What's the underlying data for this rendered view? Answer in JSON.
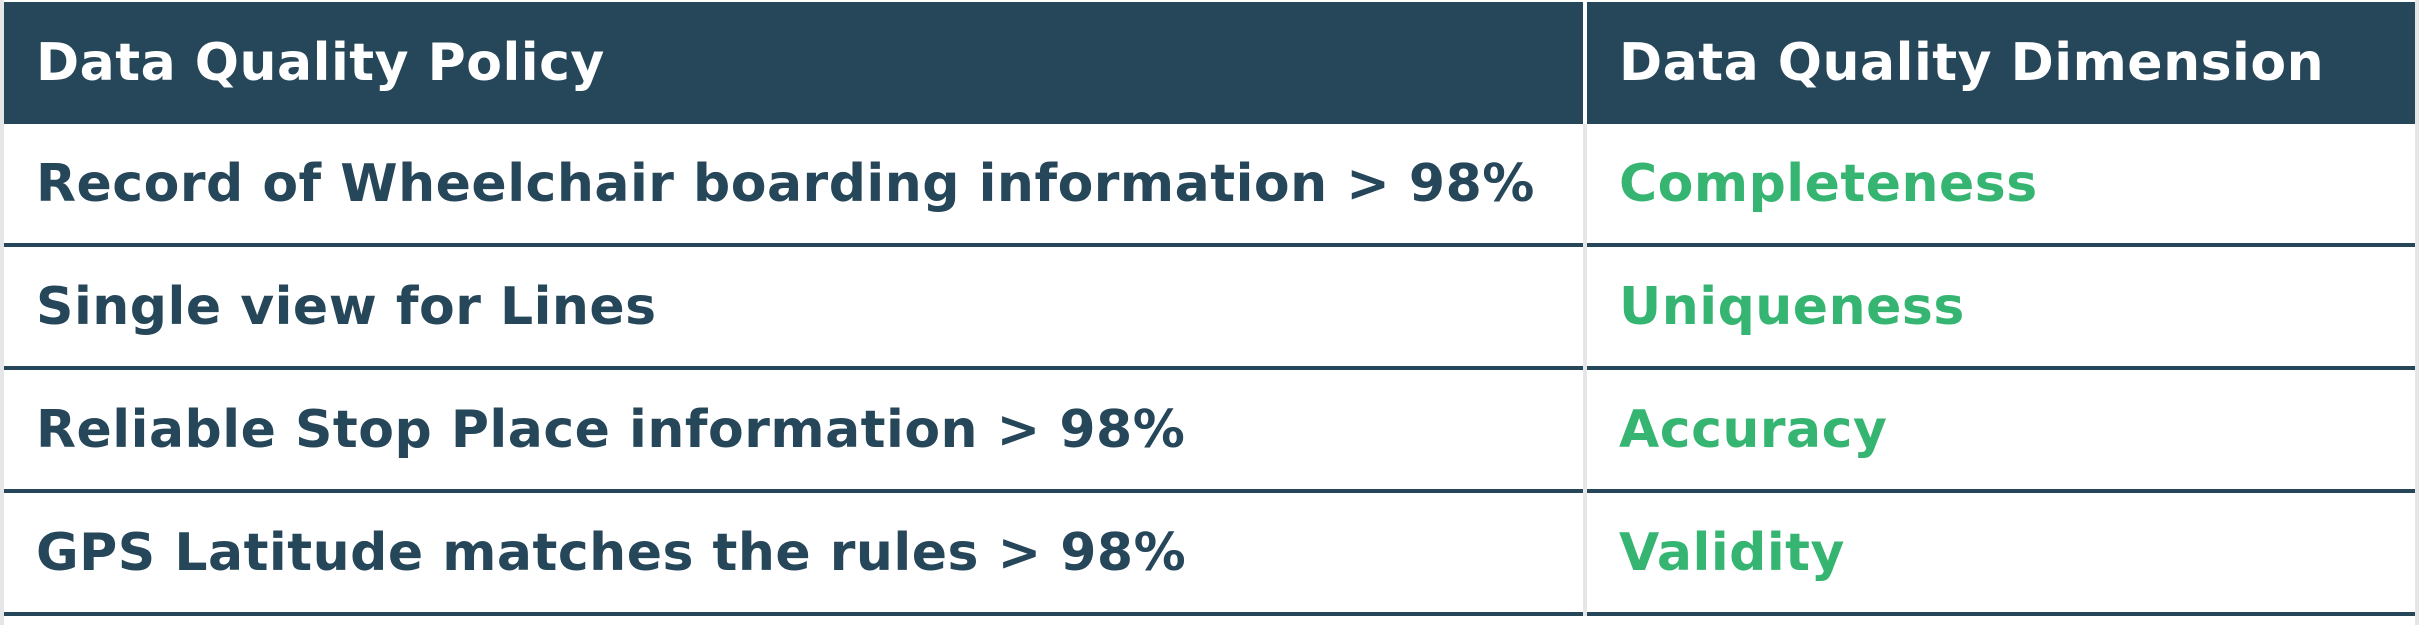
{
  "colors": {
    "header_background": "#264659",
    "header_text": "#ffffff",
    "policy_text": "#264659",
    "dimension_text": "#35b571"
  },
  "table": {
    "headers": {
      "policy": "Data Quality Policy",
      "dimension": "Data Quality Dimension"
    },
    "rows": [
      {
        "policy": "Record of Wheelchair boarding information > 98%",
        "dimension": "Completeness"
      },
      {
        "policy": "Single view for Lines",
        "dimension": "Uniqueness"
      },
      {
        "policy": "Reliable Stop Place information > 98%",
        "dimension": "Accuracy"
      },
      {
        "policy": "GPS Latitude matches the rules > 98%",
        "dimension": "Validity"
      }
    ]
  }
}
